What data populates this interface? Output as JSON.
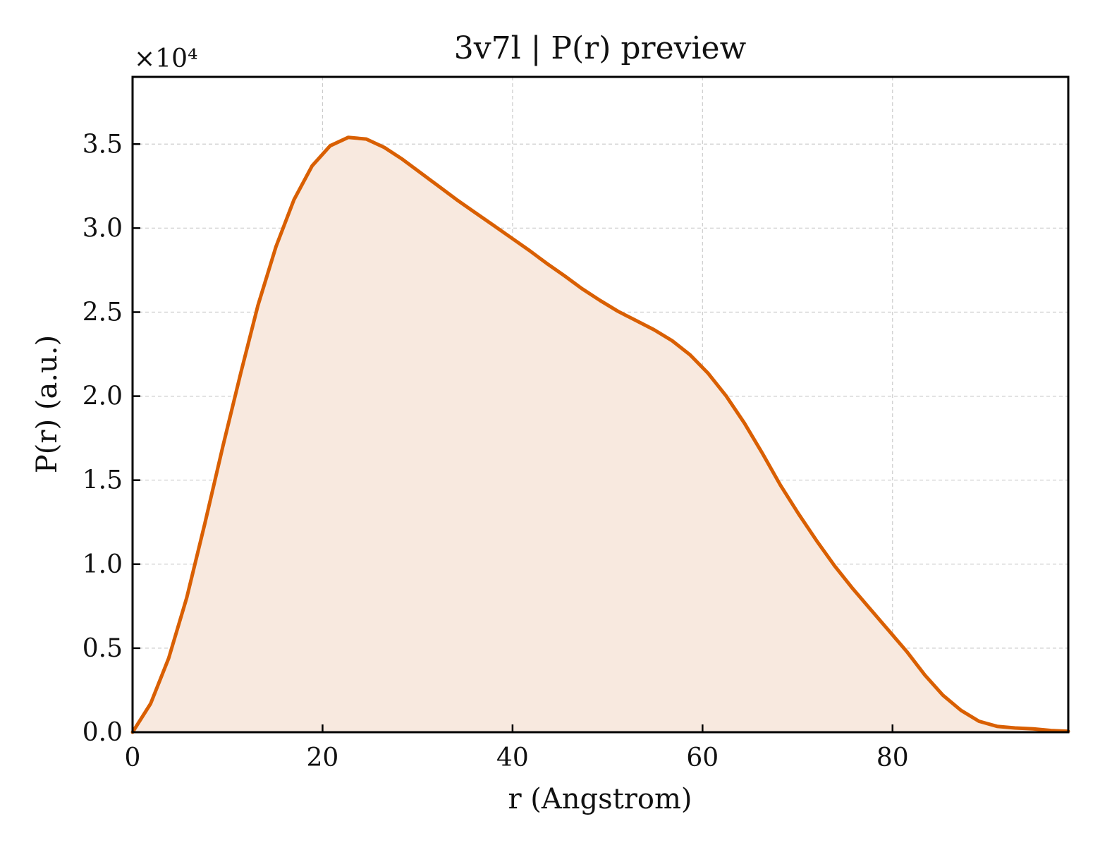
{
  "chart_data": {
    "type": "area",
    "title": "3v7l | P(r) preview",
    "xlabel": "r (Angstrom)",
    "ylabel": "P(r) (a.u.)",
    "y_multiplier_label": "×10⁴",
    "xlim": [
      0,
      98.5
    ],
    "ylim": [
      0,
      3.9
    ],
    "y_unit_scale": 10000,
    "xticks": [
      0,
      20,
      40,
      60,
      80
    ],
    "yticks": [
      0.0,
      0.5,
      1.0,
      1.5,
      2.0,
      2.5,
      3.0,
      3.5
    ],
    "xtick_labels": [
      "0",
      "20",
      "40",
      "60",
      "80"
    ],
    "ytick_labels": [
      "0.0",
      "0.5",
      "1.0",
      "1.5",
      "2.0",
      "2.5",
      "3.0",
      "3.5"
    ],
    "grid": true,
    "legend": "none",
    "line_color": "#d95f02",
    "fill_color": "#f8e9df",
    "series": [
      {
        "x": [
          0,
          1.9,
          3.8,
          5.7,
          7.6,
          9.5,
          11.4,
          13.2,
          15.1,
          17.0,
          18.9,
          20.8,
          22.7,
          24.6,
          26.5,
          28.4,
          30.3,
          32.2,
          34.1,
          36.0,
          37.9,
          39.8,
          41.7,
          43.6,
          45.5,
          47.3,
          49.2,
          51.1,
          53.0,
          54.9,
          56.8,
          58.7,
          60.6,
          62.5,
          64.4,
          66.3,
          68.2,
          70.1,
          72.0,
          73.9,
          75.8,
          77.7,
          79.6,
          81.5,
          83.4,
          85.3,
          87.2,
          89.1,
          91.0,
          92.9,
          94.8,
          96.7,
          98.5
        ],
        "values": [
          0.0,
          0.17,
          0.44,
          0.8,
          1.24,
          1.7,
          2.14,
          2.54,
          2.89,
          3.17,
          3.37,
          3.49,
          3.54,
          3.53,
          3.48,
          3.41,
          3.33,
          3.25,
          3.17,
          3.095,
          3.02,
          2.945,
          2.87,
          2.79,
          2.715,
          2.64,
          2.57,
          2.505,
          2.45,
          2.395,
          2.33,
          2.245,
          2.135,
          2.0,
          1.84,
          1.66,
          1.47,
          1.3,
          1.14,
          0.99,
          0.855,
          0.73,
          0.605,
          0.48,
          0.34,
          0.22,
          0.13,
          0.065,
          0.035,
          0.025,
          0.02,
          0.01,
          0.005
        ]
      }
    ]
  }
}
